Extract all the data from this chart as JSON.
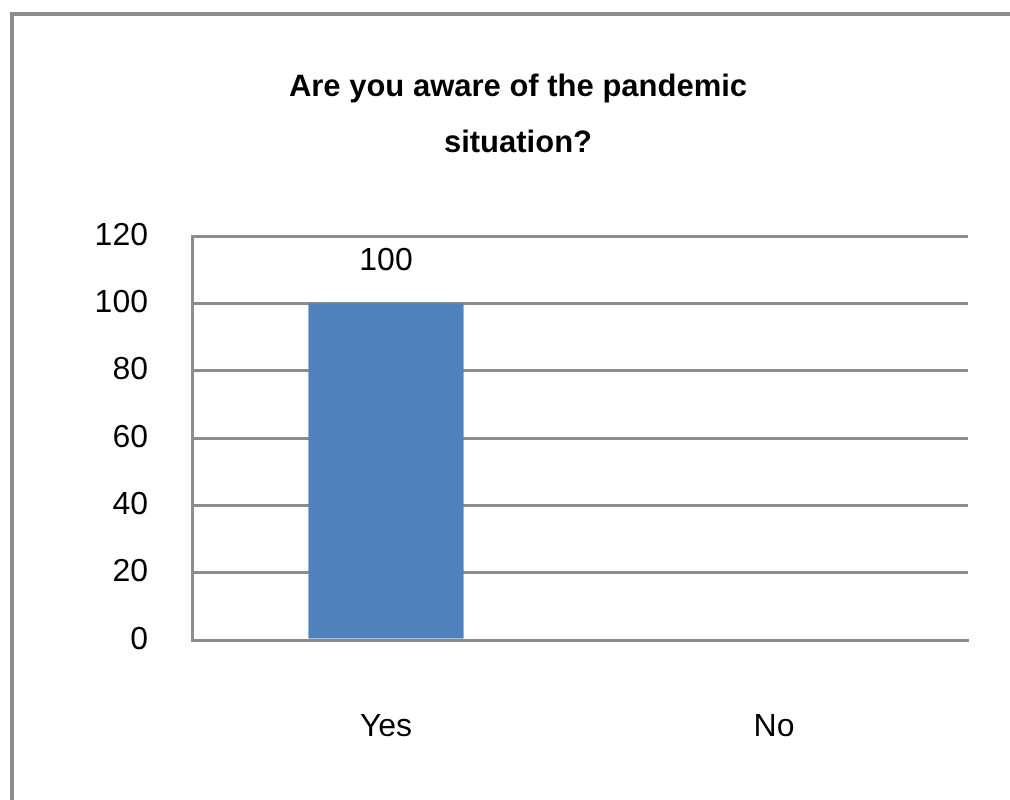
{
  "chart_data": {
    "type": "bar",
    "title": "Are you aware of the pandemic situation?",
    "categories": [
      "Yes",
      "No"
    ],
    "values": [
      100,
      0
    ],
    "color": "#4f81bd",
    "value_labels": [
      "100",
      null
    ],
    "ylim": [
      0,
      120
    ],
    "yticks": [
      0,
      20,
      40,
      60,
      80,
      100,
      120
    ],
    "grid": "y"
  }
}
